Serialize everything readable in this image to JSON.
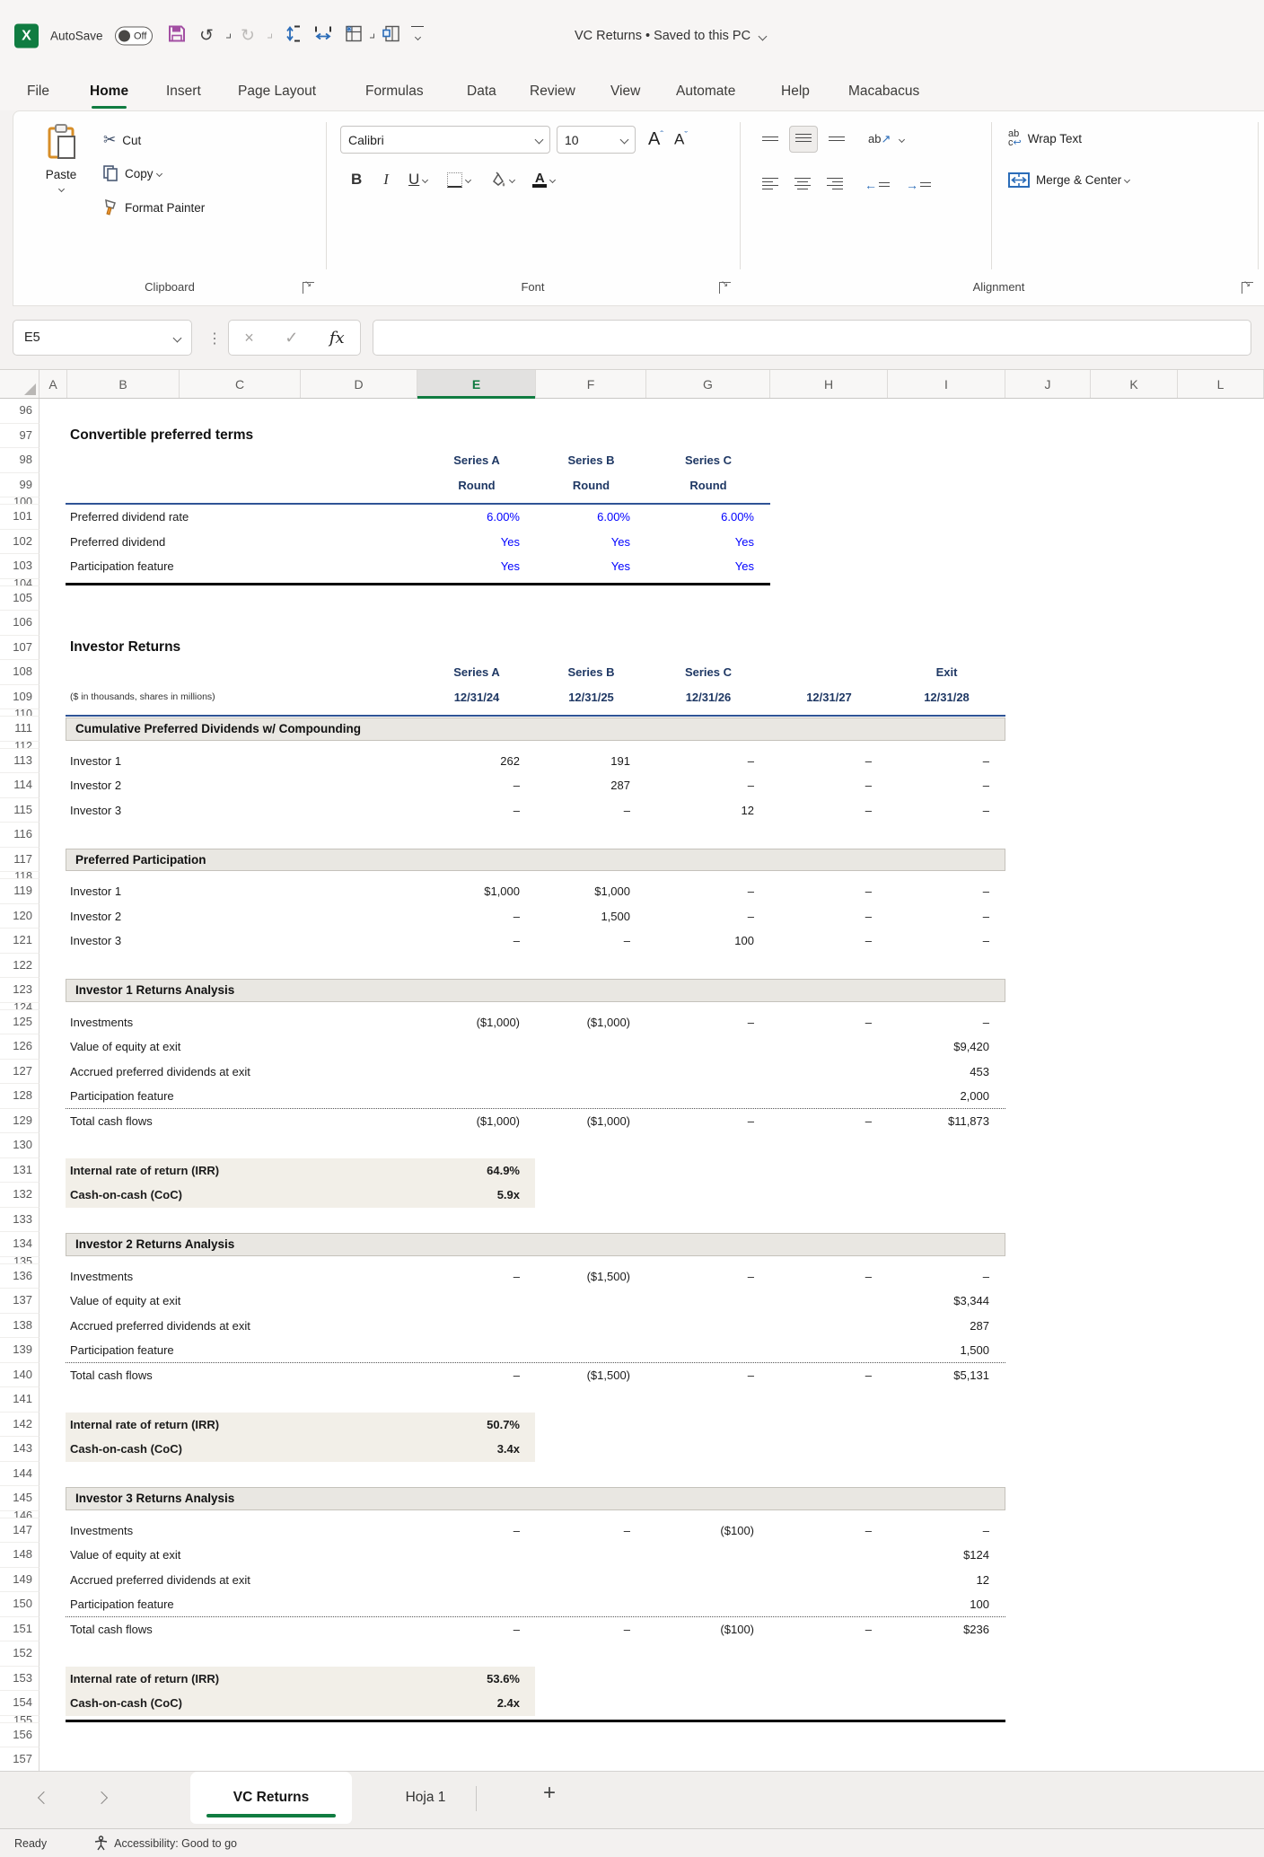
{
  "titlebar": {
    "autosave_label": "AutoSave",
    "autosave_state": "Off",
    "title": "VC Returns • Saved to this PC"
  },
  "ribbon": {
    "tabs": [
      {
        "label": "File"
      },
      {
        "label": "Home",
        "active": true
      },
      {
        "label": "Insert"
      },
      {
        "label": "Page Layout"
      },
      {
        "label": "Formulas"
      },
      {
        "label": "Data"
      },
      {
        "label": "Review"
      },
      {
        "label": "View"
      },
      {
        "label": "Automate"
      },
      {
        "label": "Help"
      },
      {
        "label": "Macabacus"
      }
    ],
    "clipboard": {
      "group": "Clipboard",
      "paste": "Paste",
      "cut": "Cut",
      "copy": "Copy",
      "format_painter": "Format Painter"
    },
    "font": {
      "group": "Font",
      "family": "Calibri",
      "size": "10",
      "bold": "B",
      "italic": "I",
      "underline": "U"
    },
    "alignment": {
      "group": "Alignment",
      "wrap": "Wrap Text",
      "merge": "Merge & Center"
    }
  },
  "formula_bar": {
    "name_box": "E5",
    "fx": "fx",
    "formula": ""
  },
  "grid": {
    "selected_column": "E",
    "column_letters": [
      "A",
      "B",
      "C",
      "D",
      "E",
      "F",
      "G",
      "H",
      "I",
      "J",
      "K",
      "L"
    ],
    "rows": [
      {
        "n": 96
      },
      {
        "n": 97,
        "t": "title",
        "lbl": "Convertible preferred terms"
      },
      {
        "n": 98,
        "t": "head",
        "c": [
          "Series A",
          "Series B",
          "Series C",
          "",
          ""
        ]
      },
      {
        "n": 99,
        "t": "head",
        "c": [
          "Round",
          "Round",
          "Round",
          "",
          ""
        ]
      },
      {
        "n": 100,
        "t": "hid",
        "bb": "blue-g"
      },
      {
        "n": 101,
        "t": "item",
        "lbl": "Preferred dividend rate",
        "blue": true,
        "c": [
          "6.00%",
          "6.00%",
          "6.00%",
          "",
          ""
        ]
      },
      {
        "n": 102,
        "t": "item",
        "lbl": "Preferred dividend",
        "blue": true,
        "c": [
          "Yes",
          "Yes",
          "Yes",
          "",
          ""
        ]
      },
      {
        "n": 103,
        "t": "item",
        "lbl": "Participation feature",
        "blue": true,
        "c": [
          "Yes",
          "Yes",
          "Yes",
          "",
          ""
        ]
      },
      {
        "n": 104,
        "t": "hid",
        "bb": "black-g"
      },
      {
        "n": 105
      },
      {
        "n": 106
      },
      {
        "n": 107,
        "t": "title",
        "lbl": "Investor Returns"
      },
      {
        "n": 108,
        "t": "head",
        "c": [
          "Series A",
          "Series B",
          "Series C",
          "",
          "Exit"
        ]
      },
      {
        "n": 109,
        "t": "head",
        "note": "($ in thousands, shares in millions)",
        "c": [
          "12/31/24",
          "12/31/25",
          "12/31/26",
          "12/31/27",
          "12/31/28"
        ]
      },
      {
        "n": 110,
        "t": "hid",
        "bb": "blue-i"
      },
      {
        "n": 111,
        "t": "section",
        "lbl": "Cumulative Preferred Dividends w/ Compounding"
      },
      {
        "n": 112,
        "t": "hid"
      },
      {
        "n": 113,
        "t": "item",
        "lbl": "Investor 1",
        "c": [
          "262",
          "191",
          "–",
          "–",
          "–"
        ]
      },
      {
        "n": 114,
        "t": "item",
        "lbl": "Investor 2",
        "c": [
          "–",
          "287",
          "–",
          "–",
          "–"
        ]
      },
      {
        "n": 115,
        "t": "item",
        "lbl": "Investor 3",
        "c": [
          "–",
          "–",
          "12",
          "–",
          "–"
        ]
      },
      {
        "n": 116
      },
      {
        "n": 117,
        "t": "section",
        "lbl": "Preferred Participation"
      },
      {
        "n": 118,
        "t": "hid"
      },
      {
        "n": 119,
        "t": "item",
        "lbl": "Investor 1",
        "c": [
          "$1,000",
          "$1,000",
          "–",
          "–",
          "–"
        ]
      },
      {
        "n": 120,
        "t": "item",
        "lbl": "Investor 2",
        "c": [
          "–",
          "1,500",
          "–",
          "–",
          "–"
        ]
      },
      {
        "n": 121,
        "t": "item",
        "lbl": "Investor 3",
        "c": [
          "–",
          "–",
          "100",
          "–",
          "–"
        ]
      },
      {
        "n": 122
      },
      {
        "n": 123,
        "t": "section",
        "lbl": "Investor 1 Returns Analysis"
      },
      {
        "n": 124,
        "t": "hid"
      },
      {
        "n": 125,
        "t": "item",
        "lbl": "Investments",
        "c": [
          "($1,000)",
          "($1,000)",
          "–",
          "–",
          "–"
        ]
      },
      {
        "n": 126,
        "t": "item",
        "lbl": "Value of equity at exit",
        "c": [
          "",
          "",
          "",
          "",
          "$9,420"
        ]
      },
      {
        "n": 127,
        "t": "item",
        "lbl": "Accrued preferred dividends at exit",
        "c": [
          "",
          "",
          "",
          "",
          "453"
        ]
      },
      {
        "n": 128,
        "t": "item",
        "lbl": "Participation feature",
        "c": [
          "",
          "",
          "",
          "",
          "2,000"
        ],
        "bb": "dot-i"
      },
      {
        "n": 129,
        "t": "item",
        "lbl": "Total cash flows",
        "c": [
          "($1,000)",
          "($1,000)",
          "–",
          "–",
          "$11,873"
        ]
      },
      {
        "n": 130
      },
      {
        "n": 131,
        "t": "metric",
        "lbl": "Internal rate of return (IRR)",
        "val": "64.9%"
      },
      {
        "n": 132,
        "t": "metric",
        "lbl": "Cash-on-cash (CoC)",
        "val": "5.9x"
      },
      {
        "n": 133
      },
      {
        "n": 134,
        "t": "section",
        "lbl": "Investor 2 Returns Analysis"
      },
      {
        "n": 135,
        "t": "hid"
      },
      {
        "n": 136,
        "t": "item",
        "lbl": "Investments",
        "c": [
          "–",
          "($1,500)",
          "–",
          "–",
          "–"
        ]
      },
      {
        "n": 137,
        "t": "item",
        "lbl": "Value of equity at exit",
        "c": [
          "",
          "",
          "",
          "",
          "$3,344"
        ]
      },
      {
        "n": 138,
        "t": "item",
        "lbl": "Accrued preferred dividends at exit",
        "c": [
          "",
          "",
          "",
          "",
          "287"
        ]
      },
      {
        "n": 139,
        "t": "item",
        "lbl": "Participation feature",
        "c": [
          "",
          "",
          "",
          "",
          "1,500"
        ],
        "bb": "dot-i"
      },
      {
        "n": 140,
        "t": "item",
        "lbl": "Total cash flows",
        "c": [
          "–",
          "($1,500)",
          "–",
          "–",
          "$5,131"
        ]
      },
      {
        "n": 141
      },
      {
        "n": 142,
        "t": "metric",
        "lbl": "Internal rate of return (IRR)",
        "val": "50.7%"
      },
      {
        "n": 143,
        "t": "metric",
        "lbl": "Cash-on-cash (CoC)",
        "val": "3.4x"
      },
      {
        "n": 144
      },
      {
        "n": 145,
        "t": "section",
        "lbl": "Investor 3 Returns Analysis"
      },
      {
        "n": 146,
        "t": "hid"
      },
      {
        "n": 147,
        "t": "item",
        "lbl": "Investments",
        "c": [
          "–",
          "–",
          "($100)",
          "–",
          "–"
        ]
      },
      {
        "n": 148,
        "t": "item",
        "lbl": "Value of equity at exit",
        "c": [
          "",
          "",
          "",
          "",
          "$124"
        ]
      },
      {
        "n": 149,
        "t": "item",
        "lbl": "Accrued preferred dividends at exit",
        "c": [
          "",
          "",
          "",
          "",
          "12"
        ]
      },
      {
        "n": 150,
        "t": "item",
        "lbl": "Participation feature",
        "c": [
          "",
          "",
          "",
          "",
          "100"
        ],
        "bb": "dot-i"
      },
      {
        "n": 151,
        "t": "item",
        "lbl": "Total cash flows",
        "c": [
          "–",
          "–",
          "($100)",
          "–",
          "$236"
        ]
      },
      {
        "n": 152
      },
      {
        "n": 153,
        "t": "metric",
        "lbl": "Internal rate of return (IRR)",
        "val": "53.6%"
      },
      {
        "n": 154,
        "t": "metric",
        "lbl": "Cash-on-cash (CoC)",
        "val": "2.4x"
      },
      {
        "n": 155,
        "t": "hid",
        "bb": "black-i"
      },
      {
        "n": 156
      },
      {
        "n": 157
      }
    ]
  },
  "sheet_tabs": {
    "active": "VC Returns",
    "others": [
      "Hoja 1"
    ],
    "add": "+"
  },
  "status_bar": {
    "mode": "Ready",
    "accessibility": "Accessibility: Good to go"
  },
  "colors": {
    "accent_green": "#107C41",
    "header_navy": "#1F3864",
    "value_blue": "#0000FF",
    "rule_blue": "#2F5496",
    "save_icon_purple": "#A34FA3"
  }
}
